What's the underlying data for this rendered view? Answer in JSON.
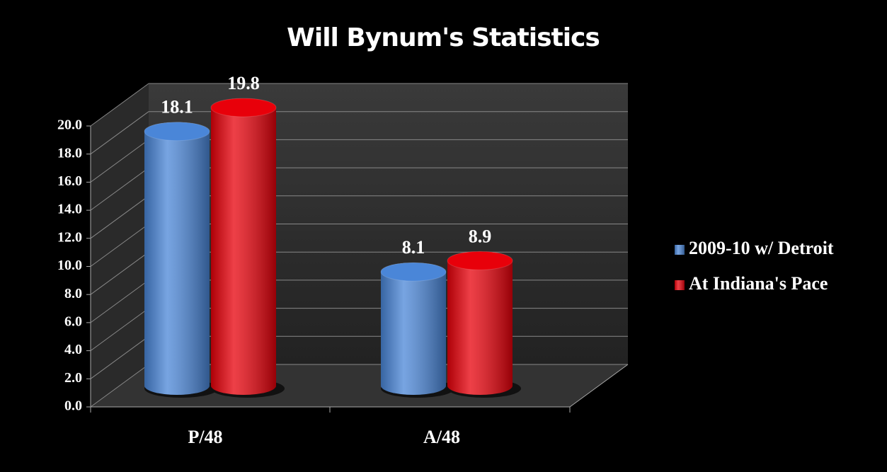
{
  "chart_data": {
    "type": "bar",
    "title": "Will Bynum's Statistics",
    "categories": [
      "P/48",
      "A/48"
    ],
    "series": [
      {
        "name": "2009-10 w/ Detroit",
        "color": "#4a86d8",
        "values": [
          18.1,
          8.1
        ]
      },
      {
        "name": "At Indiana's Pace",
        "color": "#e8000a",
        "values": [
          19.8,
          8.9
        ]
      }
    ],
    "ylim": [
      0,
      20
    ],
    "yticks": [
      {
        "value": 0,
        "label": "0.0"
      },
      {
        "value": 2,
        "label": "2.0"
      },
      {
        "value": 4,
        "label": "4.0"
      },
      {
        "value": 6,
        "label": "6.0"
      },
      {
        "value": 8,
        "label": "8.0"
      },
      {
        "value": 10,
        "label": "10.0"
      },
      {
        "value": 12,
        "label": "12.0"
      },
      {
        "value": 14,
        "label": "14.0"
      },
      {
        "value": 16,
        "label": "16.0"
      },
      {
        "value": 18,
        "label": "18.0"
      },
      {
        "value": 20,
        "label": "20.0"
      }
    ],
    "grid": true,
    "legend": "right"
  }
}
